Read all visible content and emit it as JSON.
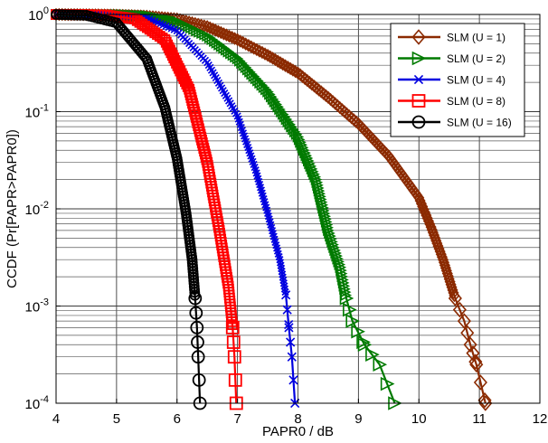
{
  "chart_data": {
    "type": "line",
    "xlabel": "PAPR0 / dB",
    "ylabel": "CCDF  (Pr[PAPR>PAPR0])",
    "xlim": [
      4,
      12
    ],
    "ylim": [
      0.0001,
      1
    ],
    "yscale": "log",
    "grid": "major and minor",
    "legend_position": "top-right",
    "x_ticks": [
      "4",
      "5",
      "6",
      "7",
      "8",
      "9",
      "10",
      "11",
      "12"
    ],
    "y_ticks": [
      {
        "base": "10",
        "exp": "-4",
        "value": 0.0001
      },
      {
        "base": "10",
        "exp": "-3",
        "value": 0.001
      },
      {
        "base": "10",
        "exp": "-2",
        "value": 0.01
      },
      {
        "base": "10",
        "exp": "-1",
        "value": 0.1
      },
      {
        "base": "10",
        "exp": "0",
        "value": 1
      }
    ],
    "series": [
      {
        "name": "SLM (U = 1)",
        "color": "#8B2A00",
        "marker": "diamond",
        "points": [
          [
            4.0,
            1.0
          ],
          [
            4.5,
            0.995
          ],
          [
            5.0,
            0.985
          ],
          [
            5.5,
            0.96
          ],
          [
            6.0,
            0.9
          ],
          [
            6.5,
            0.75
          ],
          [
            7.0,
            0.55
          ],
          [
            7.5,
            0.38
          ],
          [
            8.0,
            0.25
          ],
          [
            8.5,
            0.14
          ],
          [
            9.0,
            0.075
          ],
          [
            9.5,
            0.035
          ],
          [
            10.0,
            0.013
          ],
          [
            10.2,
            0.0065
          ],
          [
            10.4,
            0.003
          ],
          [
            10.6,
            0.0012
          ],
          [
            10.75,
            0.0007
          ],
          [
            10.85,
            0.0004
          ],
          [
            10.95,
            0.00025
          ],
          [
            11.1,
            0.0001
          ]
        ]
      },
      {
        "name": "SLM (U = 2)",
        "color": "#007A00",
        "marker": "triangle-right",
        "points": [
          [
            4.0,
            1.0
          ],
          [
            5.0,
            0.995
          ],
          [
            5.5,
            0.97
          ],
          [
            6.0,
            0.85
          ],
          [
            6.5,
            0.6
          ],
          [
            7.0,
            0.35
          ],
          [
            7.5,
            0.16
          ],
          [
            8.0,
            0.055
          ],
          [
            8.3,
            0.02
          ],
          [
            8.5,
            0.006
          ],
          [
            8.7,
            0.0025
          ],
          [
            8.8,
            0.0012
          ],
          [
            8.9,
            0.0007
          ],
          [
            9.1,
            0.0004
          ],
          [
            9.35,
            0.00025
          ],
          [
            9.6,
            0.0001
          ]
        ]
      },
      {
        "name": "SLM (U = 4)",
        "color": "#0000E0",
        "marker": "x",
        "points": [
          [
            4.0,
            1.0
          ],
          [
            5.0,
            0.99
          ],
          [
            5.5,
            0.92
          ],
          [
            6.0,
            0.68
          ],
          [
            6.5,
            0.32
          ],
          [
            7.0,
            0.09
          ],
          [
            7.3,
            0.025
          ],
          [
            7.5,
            0.009
          ],
          [
            7.7,
            0.003
          ],
          [
            7.8,
            0.0013
          ],
          [
            7.85,
            0.0006
          ],
          [
            7.9,
            0.0003
          ],
          [
            7.95,
            0.0001
          ]
        ]
      },
      {
        "name": "SLM (U = 8)",
        "color": "#FF0000",
        "marker": "square",
        "points": [
          [
            4.0,
            1.0
          ],
          [
            4.8,
            0.99
          ],
          [
            5.3,
            0.9
          ],
          [
            5.8,
            0.55
          ],
          [
            6.2,
            0.17
          ],
          [
            6.5,
            0.03
          ],
          [
            6.7,
            0.006
          ],
          [
            6.85,
            0.0016
          ],
          [
            6.92,
            0.0006
          ],
          [
            6.95,
            0.0003
          ],
          [
            6.98,
            0.0001
          ]
        ]
      },
      {
        "name": "SLM (U = 16)",
        "color": "#000000",
        "marker": "circle",
        "points": [
          [
            4.0,
            1.0
          ],
          [
            4.5,
            0.98
          ],
          [
            5.0,
            0.82
          ],
          [
            5.5,
            0.35
          ],
          [
            5.8,
            0.11
          ],
          [
            6.0,
            0.033
          ],
          [
            6.15,
            0.009
          ],
          [
            6.25,
            0.003
          ],
          [
            6.3,
            0.0012
          ],
          [
            6.33,
            0.0006
          ],
          [
            6.35,
            0.0003
          ],
          [
            6.38,
            0.0001
          ]
        ]
      }
    ]
  }
}
